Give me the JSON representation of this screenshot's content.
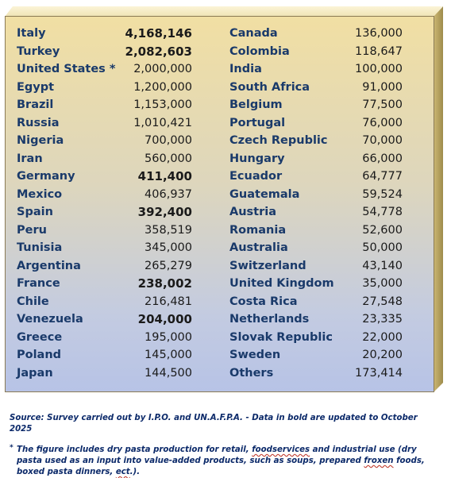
{
  "left_rows": [
    {
      "country": "Italy",
      "value": "4,168,146",
      "bold": true
    },
    {
      "country": "Turkey",
      "value": "2,082,603",
      "bold": true
    },
    {
      "country": "United States *",
      "value": "2,000,000",
      "bold": false
    },
    {
      "country": "Egypt",
      "value": "1,200,000",
      "bold": false
    },
    {
      "country": "Brazil",
      "value": "1,153,000",
      "bold": false
    },
    {
      "country": "Russia",
      "value": "1,010,421",
      "bold": false
    },
    {
      "country": "Nigeria",
      "value": "700,000",
      "bold": false
    },
    {
      "country": "Iran",
      "value": "560,000",
      "bold": false
    },
    {
      "country": "Germany",
      "value": "411,400",
      "bold": true
    },
    {
      "country": "Mexico",
      "value": "406,937",
      "bold": false
    },
    {
      "country": "Spain",
      "value": "392,400",
      "bold": true
    },
    {
      "country": "Peru",
      "value": "358,519",
      "bold": false
    },
    {
      "country": "Tunisia",
      "value": "345,000",
      "bold": false
    },
    {
      "country": "Argentina",
      "value": "265,279",
      "bold": false
    },
    {
      "country": "France",
      "value": "238,002",
      "bold": true
    },
    {
      "country": "Chile",
      "value": "216,481",
      "bold": false
    },
    {
      "country": "Venezuela",
      "value": "204,000",
      "bold": true
    },
    {
      "country": "Greece",
      "value": "195,000",
      "bold": false
    },
    {
      "country": "Poland",
      "value": "145,000",
      "bold": false
    },
    {
      "country": "Japan",
      "value": "144,500",
      "bold": false
    }
  ],
  "right_rows": [
    {
      "country": "Canada",
      "value": "136,000",
      "bold": false
    },
    {
      "country": "Colombia",
      "value": "118,647",
      "bold": false
    },
    {
      "country": "India",
      "value": "100,000",
      "bold": false
    },
    {
      "country": "South Africa",
      "value": "91,000",
      "bold": false
    },
    {
      "country": "Belgium",
      "value": "77,500",
      "bold": false
    },
    {
      "country": "Portugal",
      "value": "76,000",
      "bold": false
    },
    {
      "country": "Czech Republic",
      "value": "70,000",
      "bold": false
    },
    {
      "country": "Hungary",
      "value": "66,000",
      "bold": false
    },
    {
      "country": "Ecuador",
      "value": "64,777",
      "bold": false
    },
    {
      "country": "Guatemala",
      "value": "59,524",
      "bold": false
    },
    {
      "country": "Austria",
      "value": "54,778",
      "bold": false
    },
    {
      "country": "Romania",
      "value": "52,600",
      "bold": false
    },
    {
      "country": "Australia",
      "value": "50,000",
      "bold": false
    },
    {
      "country": "Switzerland",
      "value": "43,140",
      "bold": false
    },
    {
      "country": "United Kingdom",
      "value": "35,000",
      "bold": false
    },
    {
      "country": "Costa Rica",
      "value": "27,548",
      "bold": false
    },
    {
      "country": "Netherlands",
      "value": "23,335",
      "bold": false
    },
    {
      "country": "Slovak Republic",
      "value": "22,000",
      "bold": false
    },
    {
      "country": "Sweden",
      "value": "20,200",
      "bold": false
    },
    {
      "country": "Others",
      "value": "173,414",
      "bold": false
    }
  ],
  "source": {
    "prefix": "Source: Survey carried out by I.P.O. and UN.A.F.P.A. - Data in bold are updated to October 2025"
  },
  "footnote": {
    "star": "*",
    "part1": "The figure includes dry pasta production for retail, ",
    "part2": "foodservices",
    "part3": " and industrial use (dry pasta used as an input into value-added products, such as soups, prepared ",
    "part4": "froxen",
    "part5": " foods, boxed pasta dinners, ",
    "part6": "ect",
    "part7": ".)."
  }
}
